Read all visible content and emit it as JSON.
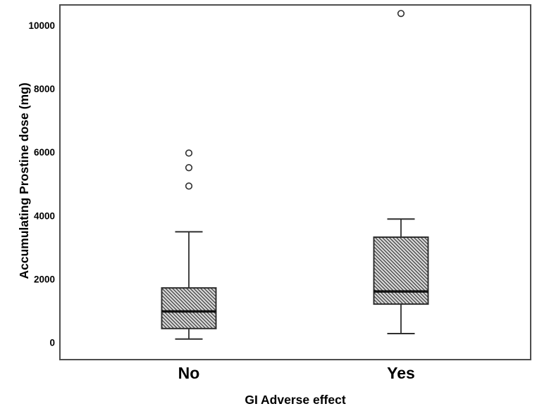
{
  "figure": {
    "background": "#ffffff",
    "frame_color": "#4d4d4d",
    "line_color": "#2f2f2f",
    "median_color": "#111111",
    "box_fill_bg": "#d8d8d8",
    "hatch_color": "#3d3d3d",
    "text_color": "#000000"
  },
  "chart_data": {
    "type": "boxplot",
    "title": "",
    "xlabel": "GI Adverse effect",
    "ylabel": "Accumulating Prostine dose (mg)",
    "categories": [
      "No",
      "Yes"
    ],
    "yticks": [
      0,
      2000,
      4000,
      6000,
      8000,
      10000
    ],
    "ylim": [
      -530,
      10650
    ],
    "grid": false,
    "legend": "none",
    "series": [
      {
        "category": "No",
        "whisker_low": 120,
        "q1": 450,
        "median": 990,
        "q3": 1730,
        "whisker_high": 3500,
        "outliers": [
          4940,
          5520,
          5980
        ]
      },
      {
        "category": "Yes",
        "whisker_low": 290,
        "q1": 1220,
        "median": 1620,
        "q3": 3330,
        "whisker_high": 3900,
        "outliers": [
          10380
        ]
      }
    ]
  }
}
